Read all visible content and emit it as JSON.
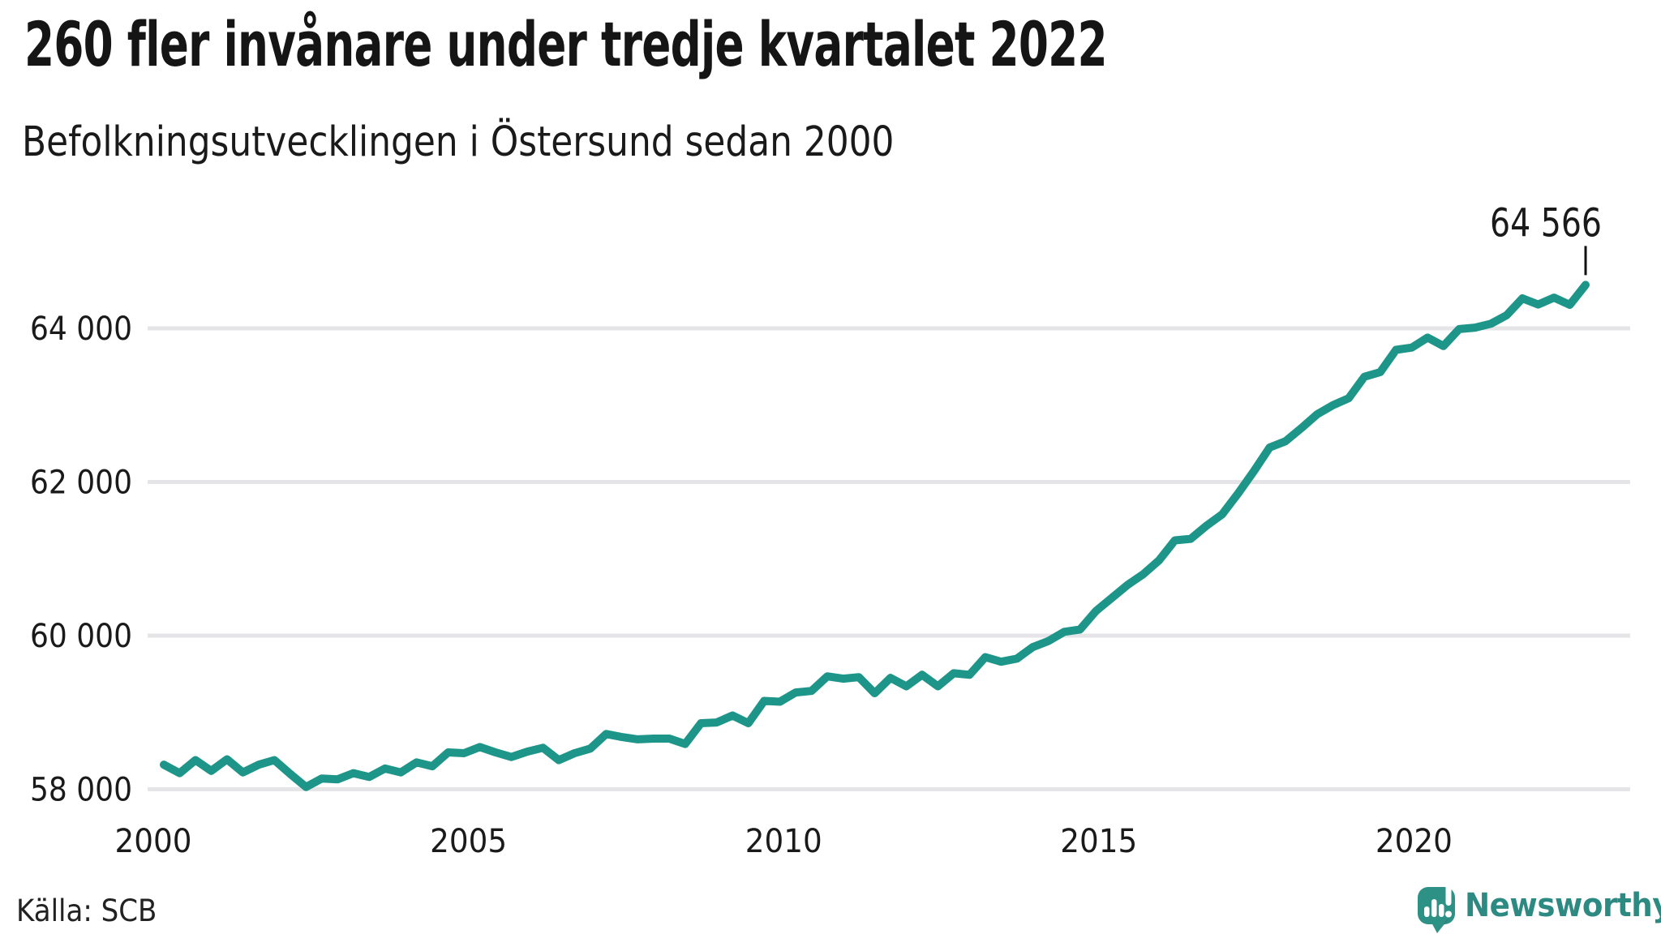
{
  "header": {
    "title": "260 fler invånare under tredje kvartalet 2022",
    "subtitle": "Befolkningsutvecklingen i Östersund sedan 2000"
  },
  "source": {
    "label": "Källa: SCB"
  },
  "branding": {
    "name": "Newsworthy",
    "logo_icon": "bar-chart-speech-bubble",
    "brand_color": "#2d9186",
    "wordmark_color": "#2d8a82"
  },
  "chart_data": {
    "type": "line",
    "title": "260 fler invånare under tredje kvartalet 2022",
    "subtitle": "Befolkningsutvecklingen i Östersund sedan 2000",
    "unit": "invånare",
    "frequency": "quarterly",
    "start_quarter": "2000 Q1",
    "end_quarter": "2022 Q3",
    "grid": true,
    "legend_position": "none",
    "line_color": "#1d9588",
    "gridline_color": "#e5e5e8",
    "y_ticks": [
      58000,
      60000,
      62000,
      64000
    ],
    "y_tick_labels": [
      "58 000",
      "60 000",
      "62 000",
      "64 000"
    ],
    "ylim": [
      57750,
      64900
    ],
    "x_tick_years": [
      2000,
      2005,
      2010,
      2015,
      2020
    ],
    "x_tick_labels": [
      "2000",
      "2005",
      "2010",
      "2015",
      "2020"
    ],
    "annotation": {
      "label": "64 566",
      "value": 64566,
      "quarter": "2022 Q3"
    },
    "series": [
      {
        "name": "Befolkning Östersund",
        "values": [
          58320,
          58210,
          58380,
          58240,
          58390,
          58220,
          58320,
          58380,
          58200,
          58030,
          58140,
          58130,
          58210,
          58160,
          58270,
          58220,
          58350,
          58300,
          58480,
          58470,
          58550,
          58480,
          58420,
          58490,
          58540,
          58380,
          58470,
          58530,
          58720,
          58680,
          58650,
          58660,
          58660,
          58590,
          58860,
          58870,
          58960,
          58860,
          59150,
          59140,
          59260,
          59280,
          59470,
          59440,
          59460,
          59250,
          59450,
          59340,
          59490,
          59340,
          59510,
          59490,
          59720,
          59660,
          59700,
          59850,
          59930,
          60050,
          60080,
          60320,
          60490,
          60660,
          60800,
          60980,
          61240,
          61260,
          61430,
          61580,
          61850,
          62140,
          62450,
          62530,
          62700,
          62880,
          63000,
          63090,
          63370,
          63430,
          63720,
          63750,
          63880,
          63770,
          63990,
          64010,
          64060,
          64170,
          64390,
          64310,
          64400,
          64306,
          64566
        ]
      }
    ]
  }
}
